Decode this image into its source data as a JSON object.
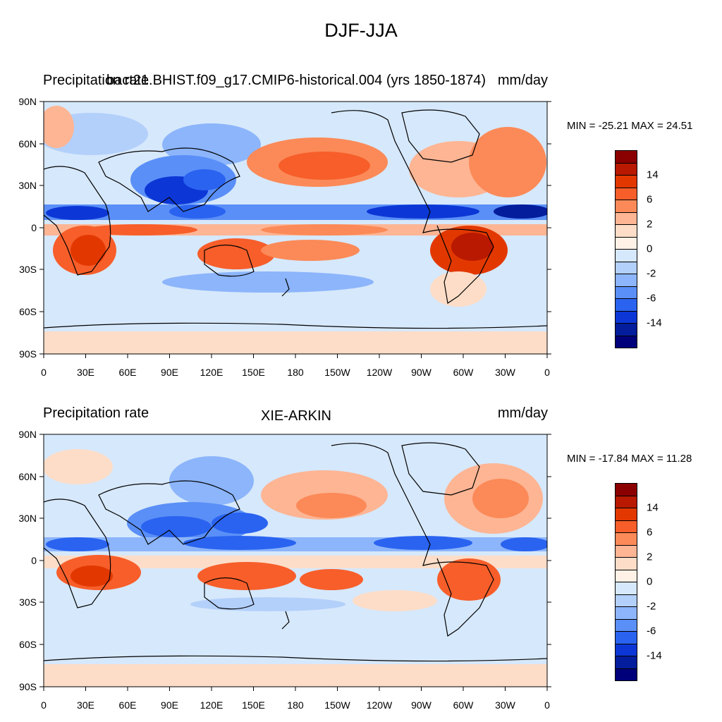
{
  "title": "DJF-JJA",
  "axes": {
    "lat_ticks": [
      "90N",
      "60N",
      "30N",
      "0",
      "30S",
      "60S",
      "90S"
    ],
    "lon_ticks": [
      "0",
      "30E",
      "60E",
      "90E",
      "120E",
      "150E",
      "180",
      "150W",
      "120W",
      "90W",
      "60W",
      "30W",
      "0"
    ]
  },
  "colorbar": {
    "colors": [
      "#8b0000",
      "#b81900",
      "#e23800",
      "#f75e2a",
      "#fb8a58",
      "#fdb594",
      "#fdddc8",
      "#fff1e6",
      "#d6e8fb",
      "#b3d0fb",
      "#8cb5fb",
      "#5a8ff7",
      "#2a63f0",
      "#0c37d6",
      "#031d9c",
      "#00007a"
    ],
    "labels": [
      "14",
      "6",
      "2",
      "0",
      "-2",
      "-6",
      "-14"
    ]
  },
  "panels": [
    {
      "id": "top",
      "left_label": "Precipitation rate",
      "center_label": "bact21.BHIST.f09_g17.CMIP6-historical.004 (yrs 1850-1874)",
      "right_label": "mm/day",
      "min_max": "MIN = -25.21 MAX =  24.51"
    },
    {
      "id": "bottom",
      "left_label": "Precipitation rate",
      "center_label": "XIE-ARKIN",
      "right_label": "mm/day",
      "min_max": "MIN = -17.84 MAX =  11.28"
    }
  ]
}
